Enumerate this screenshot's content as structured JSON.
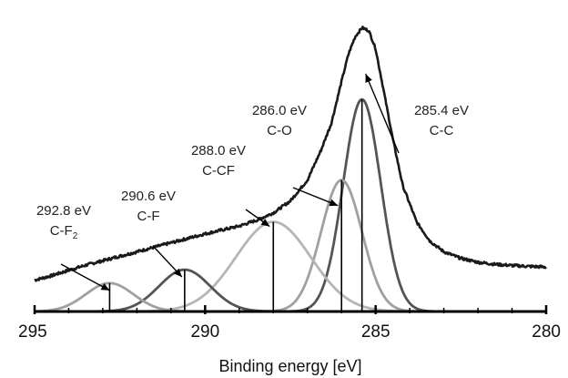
{
  "chart_data": {
    "type": "line",
    "title": "",
    "xlabel": "Binding energy [eV]",
    "ylabel": "",
    "xlim": [
      295,
      280
    ],
    "x_reversed": true,
    "ylim": [
      0,
      100
    ],
    "x_ticks": [
      295,
      290,
      285,
      280
    ],
    "x_tick_labels": [
      "295",
      "290",
      "285",
      "280"
    ],
    "grid": false,
    "colors": {
      "envelope": "#1a1a1a",
      "cc": "#555555",
      "co": "#a0a0a0",
      "ccf": "#b5b5b5",
      "cf": "#555555",
      "cf2": "#a0a0a0",
      "marker": "#000000"
    },
    "components": [
      {
        "key": "cc",
        "center": 285.4,
        "amplitude": 71,
        "sigma": 0.55
      },
      {
        "key": "co",
        "center": 286.0,
        "amplitude": 44,
        "sigma": 0.6
      },
      {
        "key": "ccf",
        "center": 288.0,
        "amplitude": 30,
        "sigma": 1.1
      },
      {
        "key": "cf",
        "center": 290.6,
        "amplitude": 14,
        "sigma": 0.75
      },
      {
        "key": "cf2",
        "center": 292.8,
        "amplitude": 9.5,
        "sigma": 0.7
      }
    ],
    "envelope": {
      "x": [
        295,
        294.5,
        294,
        293.5,
        293,
        292.5,
        292,
        291.5,
        291,
        290.5,
        290,
        289.5,
        289,
        288.5,
        288,
        287.5,
        287,
        286.6,
        286.3,
        286,
        285.8,
        285.6,
        285.4,
        285.2,
        285,
        284.8,
        284.5,
        284.2,
        283.8,
        283.4,
        283,
        282.5,
        282,
        281.5,
        281,
        280.5,
        280
      ],
      "y": [
        10.5,
        12,
        13.8,
        15.5,
        17,
        18.5,
        20,
        21.5,
        23,
        24.5,
        26,
        27.3,
        28.6,
        30.5,
        33,
        37,
        44,
        54,
        63,
        77,
        86,
        92,
        95,
        94,
        88,
        76,
        58,
        42,
        30,
        23.5,
        20,
        17.8,
        16.5,
        15.8,
        15.4,
        15.1,
        14.9
      ]
    },
    "annotations": [
      {
        "key": "cf2",
        "energy_text": "292.8 eV",
        "bond_main": "C-F",
        "bond_sub": "2"
      },
      {
        "key": "cf",
        "energy_text": "290.6 eV",
        "bond_main": "C-F",
        "bond_sub": ""
      },
      {
        "key": "ccf",
        "energy_text": "288.0 eV",
        "bond_main": "C-CF",
        "bond_sub": ""
      },
      {
        "key": "co",
        "energy_text": "286.0 eV",
        "bond_main": "C-O",
        "bond_sub": ""
      },
      {
        "key": "cc",
        "energy_text": "285.4 eV",
        "bond_main": "C-C",
        "bond_sub": ""
      }
    ]
  }
}
